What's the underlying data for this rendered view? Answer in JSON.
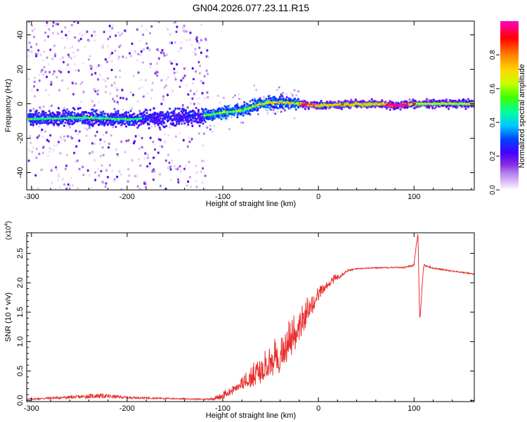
{
  "title": "GN04.2026.077.23.11.R15",
  "chart_data": [
    {
      "type": "heatmap",
      "title": "GN04.2026.077.23.11.R15",
      "xlabel": "Height of straight line (km)",
      "ylabel": "Frequency (Hz)",
      "xlim": [
        -305,
        163
      ],
      "ylim": [
        -50,
        48
      ],
      "x_ticks": [
        -300,
        -200,
        -100,
        0,
        100
      ],
      "x_tick_labels": [
        "-300",
        "-200",
        "-100",
        "0",
        "100"
      ],
      "y_ticks": [
        -40,
        -20,
        0,
        20,
        40
      ],
      "y_tick_labels": [
        "-40",
        "-20",
        "0",
        "20",
        "40"
      ],
      "ridge": {
        "x": [
          -300,
          -250,
          -200,
          -150,
          -120,
          -100,
          -80,
          -60,
          -40,
          -20,
          0,
          50,
          85,
          100,
          163
        ],
        "frequency": [
          -9,
          -8,
          -9,
          -8,
          -7,
          -5,
          -4,
          0,
          1,
          0,
          -1,
          0,
          -1,
          0,
          0
        ]
      },
      "colorbar": {
        "label": "Normalized spectral amplitude",
        "ticks": [
          0.0,
          0.2,
          0.4,
          0.6,
          0.8
        ],
        "tick_labels": [
          "0.0",
          "0.2",
          "0.4",
          "0.6",
          "0.8"
        ],
        "range": [
          0,
          1
        ],
        "colors": [
          "#ffffff",
          "#dcb8f2",
          "#b080f0",
          "#8a2be2",
          "#4400ff",
          "#0044ff",
          "#00c8ff",
          "#00ffa0",
          "#40ff00",
          "#c8ff00",
          "#ffd700",
          "#ff8000",
          "#ff0000",
          "#ff00c8"
        ]
      }
    },
    {
      "type": "line",
      "xlabel": "Height of straight line (km)",
      "ylabel": "SNR (10 * v/v)",
      "y_multiplier": "(x10^4)",
      "multiplier_base": "(x10",
      "multiplier_exp": "4",
      "multiplier_close": ")",
      "xlim": [
        -305,
        163
      ],
      "ylim": [
        -0.02,
        2.85
      ],
      "x_ticks": [
        -300,
        -200,
        -100,
        0,
        100
      ],
      "x_tick_labels": [
        "-300",
        "-200",
        "-100",
        "0",
        "100"
      ],
      "y_ticks": [
        0.0,
        0.5,
        1.0,
        1.5,
        2.0,
        2.5
      ],
      "y_tick_labels": [
        "0.0",
        "0.5",
        "1.0",
        "1.5",
        "2.0",
        "2.5"
      ],
      "series": [
        {
          "name": "SNR",
          "color": "#e8302e",
          "x": [
            -305,
            -280,
            -250,
            -230,
            -200,
            -150,
            -120,
            -110,
            -100,
            -90,
            -80,
            -70,
            -60,
            -50,
            -40,
            -30,
            -20,
            -10,
            0,
            10,
            20,
            30,
            40,
            50,
            70,
            90,
            100,
            104,
            106,
            110,
            120,
            140,
            163
          ],
          "y": [
            0.02,
            0.04,
            0.06,
            0.08,
            0.05,
            0.03,
            0.02,
            0.03,
            0.08,
            0.25,
            0.4,
            0.55,
            0.7,
            0.85,
            1.0,
            1.2,
            1.45,
            1.7,
            1.9,
            2.0,
            2.1,
            2.2,
            2.24,
            2.25,
            2.26,
            2.26,
            2.3,
            2.85,
            1.35,
            2.3,
            2.25,
            2.2,
            2.15
          ],
          "noise_amplitude": [
            0.01,
            0.02,
            0.03,
            0.04,
            0.02,
            0.01,
            0.01,
            0.02,
            0.06,
            0.2,
            0.3,
            0.45,
            0.55,
            0.65,
            0.7,
            0.7,
            0.6,
            0.45,
            0.3,
            0.12,
            0.05,
            0.02,
            0.01,
            0.01,
            0.01,
            0.01,
            0.02,
            0.05,
            0.05,
            0.02,
            0.01,
            0.01,
            0.01
          ]
        }
      ]
    }
  ]
}
